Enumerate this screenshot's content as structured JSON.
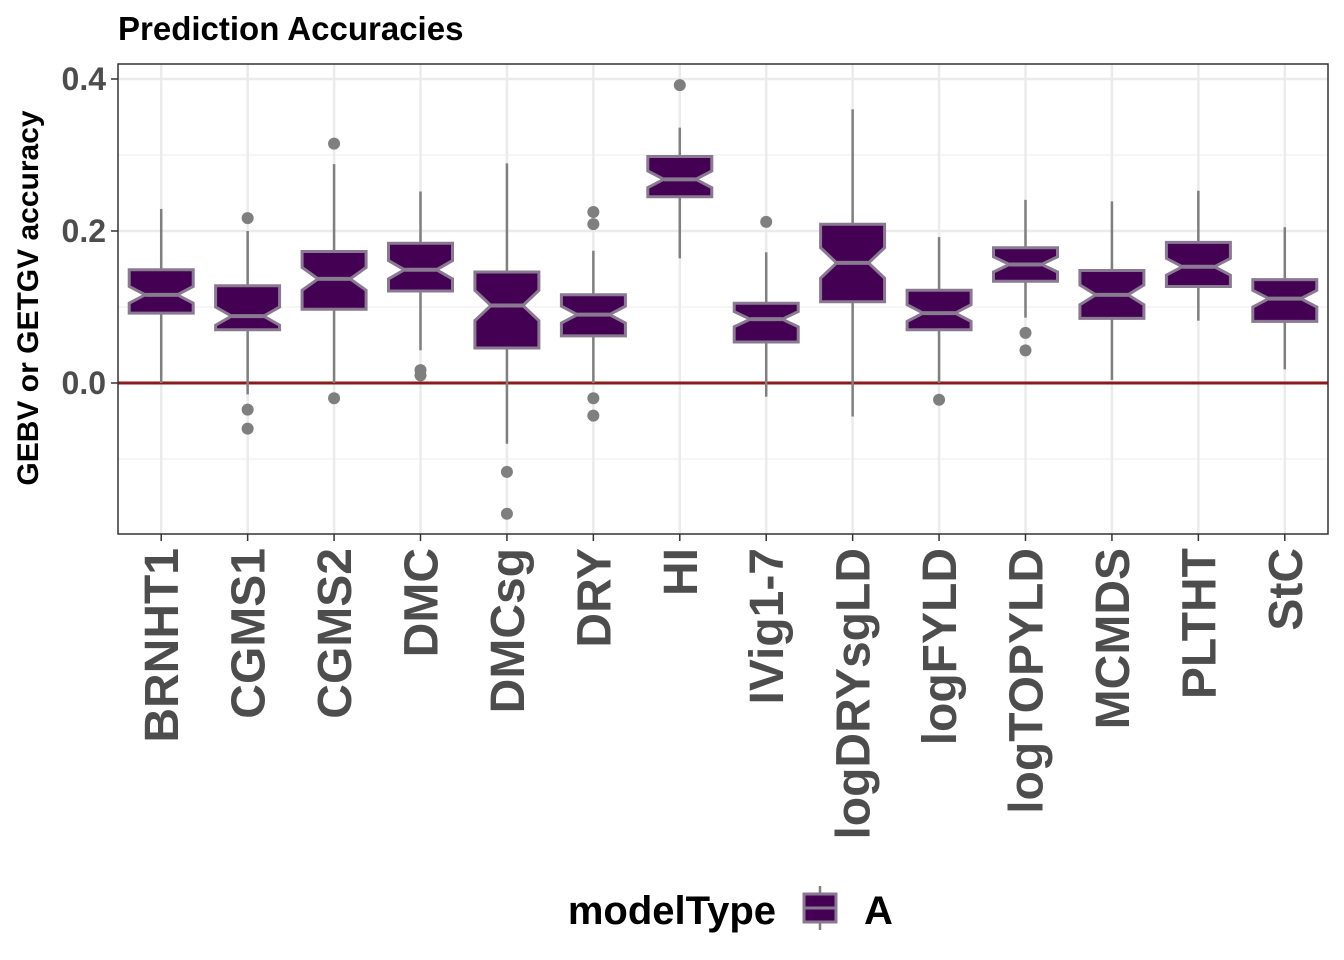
{
  "colors": {
    "box_fill": "#440154",
    "box_outline": "#8a7a91",
    "whisker": "#7f7f7f",
    "outlier": "#7f7f7f",
    "reference_line": "#8b1a1a",
    "grid_major": "#ebebeb",
    "grid_minor": "#f4f4f4",
    "panel_border": "#333333"
  },
  "chart_data": {
    "type": "boxplot",
    "title": "Prediction Accuracies",
    "xlabel": "",
    "ylabel": "GEBV or GETGV accuracy",
    "ylim": [
      -0.2,
      0.42
    ],
    "yticks": [
      0.0,
      0.2,
      0.4
    ],
    "ytick_labels": [
      "0.0",
      "0.2",
      "0.4"
    ],
    "grid": true,
    "notched": true,
    "reference_line_y": 0.0,
    "legend": {
      "title": "modelType",
      "entries": [
        "A"
      ],
      "position": "bottom"
    },
    "series": [
      {
        "name": "A",
        "boxes": [
          {
            "category": "BRNHT1",
            "min": 0.0,
            "q1": 0.092,
            "median": 0.116,
            "q3": 0.149,
            "max": 0.229,
            "notch_low": 0.105,
            "notch_high": 0.127,
            "outliers": []
          },
          {
            "category": "CGMS1",
            "min": -0.015,
            "q1": 0.07,
            "median": 0.088,
            "q3": 0.128,
            "max": 0.2,
            "notch_low": 0.076,
            "notch_high": 0.1,
            "outliers": [
              0.217,
              -0.035,
              -0.06
            ]
          },
          {
            "category": "CGMS2",
            "min": 0.0,
            "q1": 0.097,
            "median": 0.137,
            "q3": 0.173,
            "max": 0.288,
            "notch_low": 0.122,
            "notch_high": 0.152,
            "outliers": [
              0.315,
              -0.02
            ]
          },
          {
            "category": "DMC",
            "min": 0.043,
            "q1": 0.121,
            "median": 0.149,
            "q3": 0.184,
            "max": 0.252,
            "notch_low": 0.137,
            "notch_high": 0.161,
            "outliers": [
              0.017,
              0.01
            ]
          },
          {
            "category": "DMCsg",
            "min": -0.08,
            "q1": 0.046,
            "median": 0.102,
            "q3": 0.146,
            "max": 0.289,
            "notch_low": 0.082,
            "notch_high": 0.122,
            "outliers": [
              -0.117,
              -0.172
            ]
          },
          {
            "category": "DRY",
            "min": 0.0,
            "q1": 0.062,
            "median": 0.09,
            "q3": 0.116,
            "max": 0.174,
            "notch_low": 0.079,
            "notch_high": 0.101,
            "outliers": [
              0.225,
              0.209,
              -0.02,
              -0.043
            ]
          },
          {
            "category": "HI",
            "min": 0.164,
            "q1": 0.245,
            "median": 0.268,
            "q3": 0.298,
            "max": 0.336,
            "notch_low": 0.257,
            "notch_high": 0.279,
            "outliers": [
              0.392
            ]
          },
          {
            "category": "IVig1-7",
            "min": -0.018,
            "q1": 0.054,
            "median": 0.084,
            "q3": 0.105,
            "max": 0.172,
            "notch_low": 0.074,
            "notch_high": 0.094,
            "outliers": [
              0.212
            ]
          },
          {
            "category": "logDRYsgLD",
            "min": -0.044,
            "q1": 0.107,
            "median": 0.158,
            "q3": 0.209,
            "max": 0.36,
            "notch_low": 0.138,
            "notch_high": 0.178,
            "outliers": []
          },
          {
            "category": "logFYLD",
            "min": 0.0,
            "q1": 0.07,
            "median": 0.092,
            "q3": 0.122,
            "max": 0.192,
            "notch_low": 0.081,
            "notch_high": 0.103,
            "outliers": [
              -0.022
            ]
          },
          {
            "category": "logTOPYLD",
            "min": 0.086,
            "q1": 0.134,
            "median": 0.156,
            "q3": 0.178,
            "max": 0.241,
            "notch_low": 0.146,
            "notch_high": 0.166,
            "outliers": [
              0.066,
              0.043
            ]
          },
          {
            "category": "MCMDS",
            "min": 0.004,
            "q1": 0.085,
            "median": 0.116,
            "q3": 0.148,
            "max": 0.239,
            "notch_low": 0.103,
            "notch_high": 0.129,
            "outliers": []
          },
          {
            "category": "PLTHT",
            "min": 0.082,
            "q1": 0.127,
            "median": 0.153,
            "q3": 0.185,
            "max": 0.253,
            "notch_low": 0.142,
            "notch_high": 0.164,
            "outliers": []
          },
          {
            "category": "StC",
            "min": 0.018,
            "q1": 0.081,
            "median": 0.111,
            "q3": 0.136,
            "max": 0.205,
            "notch_low": 0.1,
            "notch_high": 0.122,
            "outliers": []
          }
        ]
      }
    ]
  }
}
